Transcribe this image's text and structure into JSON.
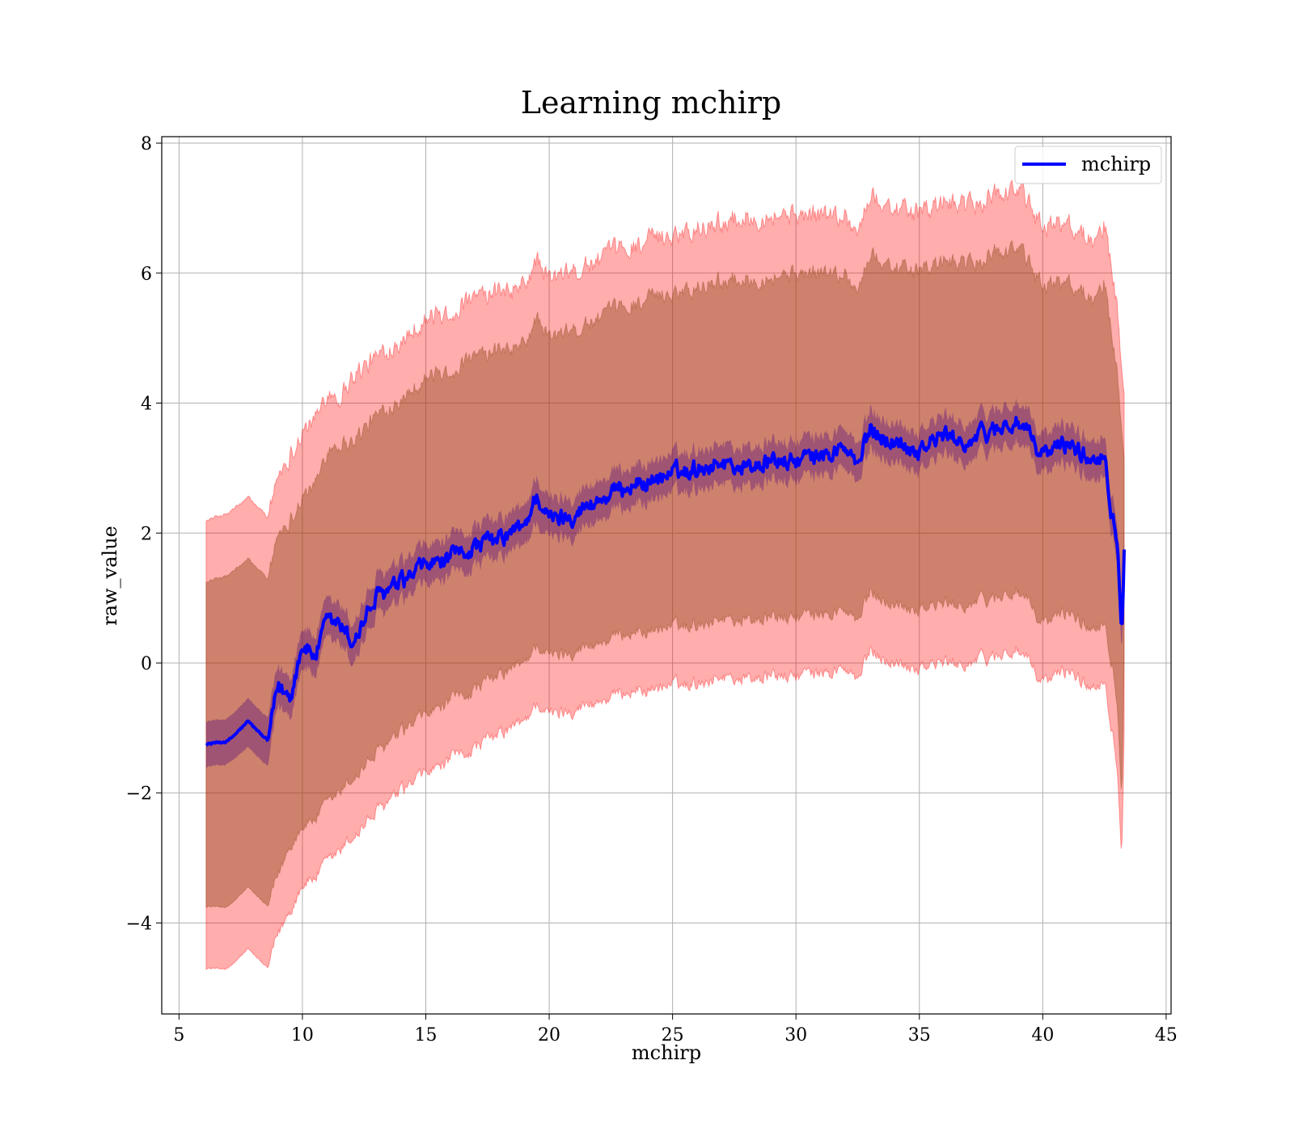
{
  "chart_data": {
    "type": "line",
    "title": "Learning mchirp",
    "xlabel": "mchirp",
    "ylabel": "raw_value",
    "xlim": [
      4.3,
      45.2
    ],
    "ylim": [
      -5.4,
      8.1
    ],
    "xticks": [
      5,
      10,
      15,
      20,
      25,
      30,
      35,
      40,
      45
    ],
    "yticks": [
      -4,
      -2,
      0,
      2,
      4,
      6,
      8
    ],
    "xtick_labels": [
      "5",
      "10",
      "15",
      "20",
      "25",
      "30",
      "35",
      "40",
      "45"
    ],
    "ytick_labels": [
      "−4",
      "−2",
      "0",
      "2",
      "4",
      "6",
      "8"
    ],
    "grid": true,
    "legend": {
      "position": "top-right",
      "entries": [
        "mchirp"
      ]
    },
    "colors": {
      "line": "#0000ff",
      "outer_band": "#ff0000",
      "inner_band": "#8b4513",
      "mean_band": "#4b0082"
    },
    "series": [
      {
        "name": "mchirp",
        "x": [
          6.1,
          7.0,
          7.8,
          8.6,
          9.0,
          9.5,
          10.0,
          10.5,
          11.0,
          11.5,
          12.0,
          13.0,
          14.0,
          15.0,
          16.0,
          17.0,
          18.0,
          19.0,
          19.5,
          20.0,
          21.0,
          22.0,
          23.0,
          24.0,
          25.0,
          26.0,
          27.0,
          28.0,
          29.0,
          30.0,
          31.0,
          32.0,
          32.5,
          33.0,
          34.0,
          35.0,
          36.0,
          37.0,
          38.0,
          39.0,
          40.0,
          41.0,
          42.0,
          42.5,
          42.8,
          43.0,
          43.2,
          43.3
        ],
        "mean": [
          -1.25,
          -1.2,
          -0.9,
          -1.2,
          -0.4,
          -0.5,
          0.3,
          0.1,
          0.6,
          0.6,
          0.3,
          1.0,
          1.2,
          1.5,
          1.6,
          1.8,
          1.9,
          2.1,
          2.6,
          2.2,
          2.3,
          2.5,
          2.7,
          2.8,
          2.9,
          3.0,
          3.1,
          3.0,
          3.1,
          3.1,
          3.2,
          3.3,
          3.0,
          3.6,
          3.4,
          3.3,
          3.5,
          3.4,
          3.6,
          3.7,
          3.2,
          3.4,
          3.1,
          3.3,
          2.3,
          2.0,
          0.6,
          1.8
        ],
        "mean_lower": [
          -1.6,
          -1.55,
          -1.3,
          -1.6,
          -0.7,
          -0.8,
          0.0,
          -0.2,
          0.3,
          0.3,
          0.0,
          0.7,
          0.9,
          1.2,
          1.3,
          1.5,
          1.6,
          1.8,
          2.2,
          1.9,
          2.0,
          2.2,
          2.4,
          2.5,
          2.6,
          2.7,
          2.8,
          2.7,
          2.8,
          2.8,
          2.9,
          3.0,
          2.7,
          3.3,
          3.1,
          3.0,
          3.2,
          3.1,
          3.3,
          3.4,
          2.9,
          3.1,
          2.8,
          3.0,
          2.0,
          1.7,
          0.3,
          1.5
        ],
        "mean_upper": [
          -0.9,
          -0.85,
          -0.55,
          -0.85,
          -0.1,
          -0.2,
          0.6,
          0.4,
          0.9,
          0.9,
          0.6,
          1.3,
          1.5,
          1.8,
          1.9,
          2.1,
          2.2,
          2.4,
          2.9,
          2.5,
          2.6,
          2.8,
          3.0,
          3.1,
          3.2,
          3.3,
          3.4,
          3.3,
          3.4,
          3.4,
          3.5,
          3.6,
          3.3,
          3.9,
          3.7,
          3.6,
          3.8,
          3.7,
          3.9,
          4.0,
          3.5,
          3.7,
          3.4,
          3.6,
          2.6,
          2.3,
          0.9,
          2.1
        ],
        "inner_lower": [
          -3.75,
          -3.75,
          -3.45,
          -3.75,
          -3.3,
          -2.8,
          -2.5,
          -2.4,
          -2.2,
          -2.0,
          -1.8,
          -1.4,
          -1.1,
          -0.8,
          -0.6,
          -0.4,
          -0.2,
          0.0,
          0.3,
          0.1,
          0.2,
          0.3,
          0.45,
          0.5,
          0.55,
          0.6,
          0.7,
          0.65,
          0.7,
          0.7,
          0.75,
          0.8,
          0.6,
          1.1,
          0.9,
          0.85,
          0.9,
          0.9,
          1.0,
          1.1,
          0.6,
          0.8,
          0.5,
          0.7,
          0.0,
          -0.5,
          -2.0,
          0.2
        ],
        "inner_upper": [
          1.25,
          1.35,
          1.6,
          1.3,
          2.0,
          2.2,
          2.6,
          2.7,
          3.3,
          3.4,
          3.4,
          3.8,
          4.1,
          4.4,
          4.5,
          4.7,
          4.8,
          4.9,
          5.3,
          5.0,
          5.1,
          5.3,
          5.5,
          5.6,
          5.7,
          5.8,
          5.9,
          5.9,
          5.95,
          6.0,
          6.0,
          6.0,
          5.7,
          6.3,
          6.1,
          6.0,
          6.2,
          6.1,
          6.3,
          6.4,
          5.8,
          5.9,
          5.6,
          5.9,
          5.0,
          4.5,
          3.5,
          3.2
        ],
        "outer_lower": [
          -4.7,
          -4.7,
          -4.4,
          -4.7,
          -4.2,
          -3.8,
          -3.4,
          -3.3,
          -3.1,
          -2.9,
          -2.7,
          -2.3,
          -2.0,
          -1.7,
          -1.5,
          -1.3,
          -1.1,
          -0.9,
          -0.6,
          -0.8,
          -0.7,
          -0.6,
          -0.45,
          -0.4,
          -0.35,
          -0.3,
          -0.2,
          -0.25,
          -0.2,
          -0.2,
          -0.15,
          -0.1,
          -0.3,
          0.2,
          0.0,
          -0.05,
          0.0,
          0.0,
          0.1,
          0.2,
          -0.3,
          -0.1,
          -0.4,
          -0.2,
          -1.0,
          -1.5,
          -2.9,
          -1.0
        ],
        "outer_upper": [
          2.2,
          2.3,
          2.55,
          2.25,
          2.9,
          3.2,
          3.6,
          3.7,
          4.2,
          4.1,
          4.4,
          4.7,
          5.0,
          5.3,
          5.4,
          5.6,
          5.7,
          5.8,
          6.2,
          5.9,
          6.0,
          6.2,
          6.4,
          6.5,
          6.6,
          6.7,
          6.8,
          6.85,
          6.9,
          6.9,
          6.9,
          6.9,
          6.6,
          7.2,
          7.0,
          6.9,
          7.1,
          7.0,
          7.2,
          7.3,
          6.7,
          6.8,
          6.5,
          6.8,
          6.0,
          5.5,
          4.4,
          4.2
        ]
      }
    ]
  }
}
